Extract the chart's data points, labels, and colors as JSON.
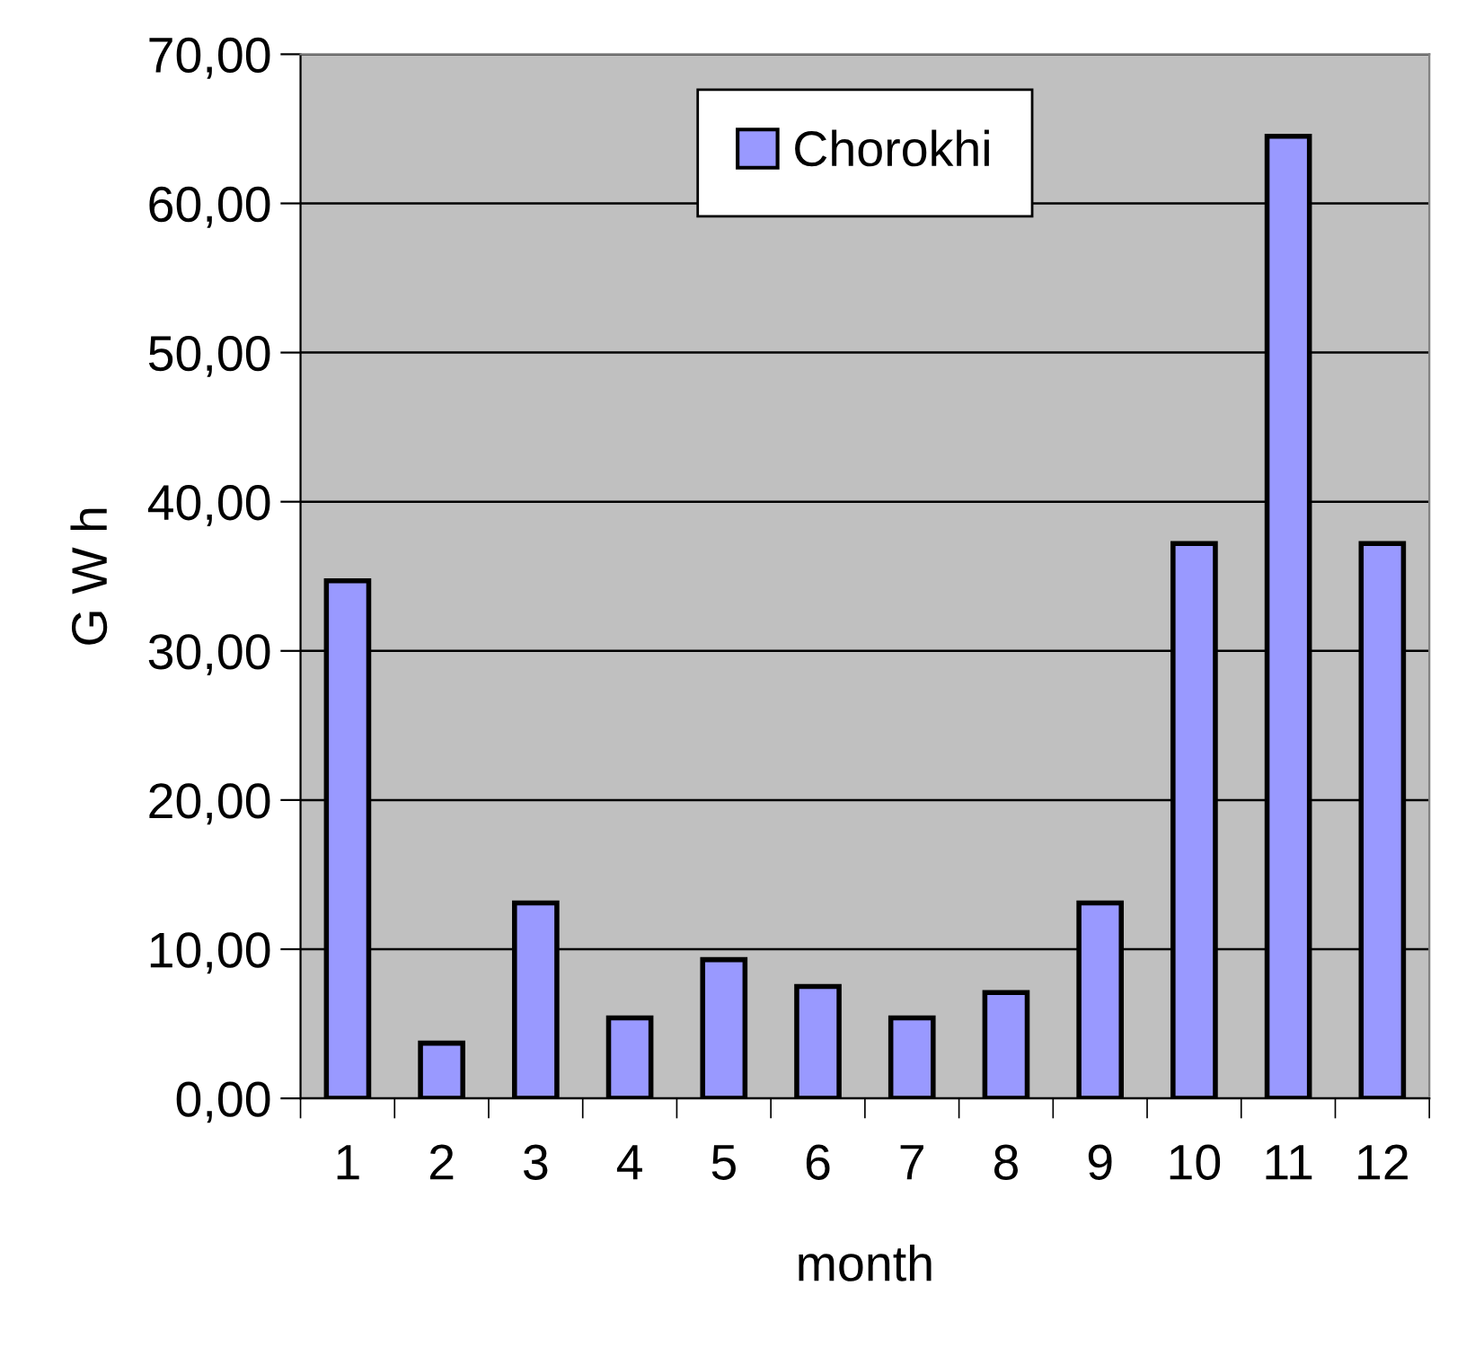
{
  "chart_data": {
    "type": "bar",
    "xlabel": "month",
    "ylabel": "G W h",
    "categories": [
      "1",
      "2",
      "3",
      "4",
      "5",
      "6",
      "7",
      "8",
      "9",
      "10",
      "11",
      "12"
    ],
    "series": [
      {
        "name": "Chorokhi",
        "color": "#9999ff",
        "values": [
          34.7,
          3.7,
          13.1,
          5.4,
          9.3,
          7.5,
          5.4,
          7.1,
          13.1,
          37.2,
          64.5,
          37.2
        ]
      }
    ],
    "ylim": [
      0,
      70
    ],
    "yticks": [
      {
        "value": 0,
        "label": "0,00"
      },
      {
        "value": 10,
        "label": "10,00"
      },
      {
        "value": 20,
        "label": "20,00"
      },
      {
        "value": 30,
        "label": "30,00"
      },
      {
        "value": 40,
        "label": "40,00"
      },
      {
        "value": 50,
        "label": "50,00"
      },
      {
        "value": 60,
        "label": "60,00"
      },
      {
        "value": 70,
        "label": "70,00"
      }
    ],
    "grid": "y",
    "legend": "top"
  }
}
